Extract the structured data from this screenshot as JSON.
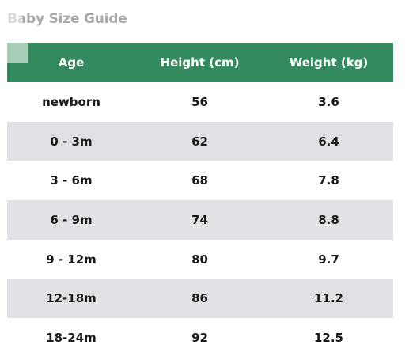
{
  "title": "Baby Size Guide",
  "colors": {
    "header_bg": "#338a5e",
    "striped_row_bg": "#dfe1e5",
    "plain_row_bg": "#ffffff",
    "title_color": "#a9a9a9"
  },
  "table": {
    "headers": [
      "Age",
      "Height (cm)",
      "Weight (kg)"
    ],
    "rows": [
      [
        "newborn",
        "56",
        "3.6"
      ],
      [
        "0 - 3m",
        "62",
        "6.4"
      ],
      [
        "3 - 6m",
        "68",
        "7.8"
      ],
      [
        "6 - 9m",
        "74",
        "8.8"
      ],
      [
        "9 - 12m",
        "80",
        "9.7"
      ],
      [
        "12-18m",
        "86",
        "11.2"
      ],
      [
        "18-24m",
        "92",
        "12.5"
      ]
    ]
  }
}
